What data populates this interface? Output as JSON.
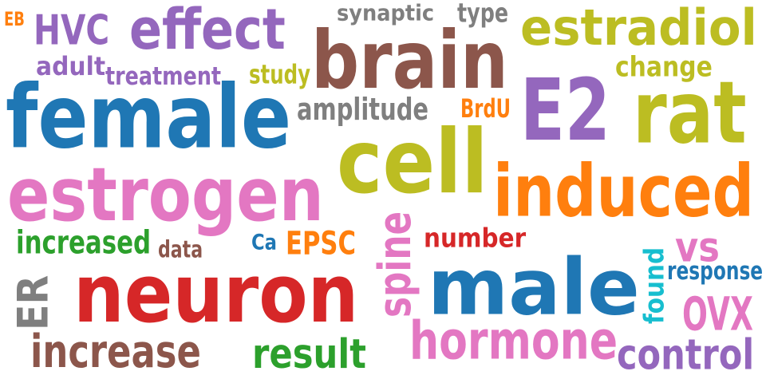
{
  "palette": {
    "blue": "#1f77b4",
    "orange": "#ff7f0e",
    "green": "#2ca02c",
    "red": "#d62728",
    "purple": "#9467bd",
    "brown": "#8c564b",
    "pink": "#e377c2",
    "gray": "#7f7f7f",
    "olive": "#bcbd22",
    "cyan": "#17becf"
  },
  "words": [
    {
      "text": "EB",
      "color": "orange",
      "vertical": false
    },
    {
      "text": "HVC",
      "color": "purple",
      "vertical": false
    },
    {
      "text": "effect",
      "color": "purple",
      "vertical": false
    },
    {
      "text": "synaptic",
      "color": "gray",
      "vertical": false
    },
    {
      "text": "type",
      "color": "gray",
      "vertical": false
    },
    {
      "text": "estradiol",
      "color": "olive",
      "vertical": false
    },
    {
      "text": "brain",
      "color": "brown",
      "vertical": false
    },
    {
      "text": "adult",
      "color": "purple",
      "vertical": false
    },
    {
      "text": "treatment",
      "color": "purple",
      "vertical": false
    },
    {
      "text": "study",
      "color": "olive",
      "vertical": false
    },
    {
      "text": "change",
      "color": "olive",
      "vertical": false
    },
    {
      "text": "E2",
      "color": "purple",
      "vertical": false
    },
    {
      "text": "rat",
      "color": "olive",
      "vertical": false
    },
    {
      "text": "female",
      "color": "blue",
      "vertical": false
    },
    {
      "text": "amplitude",
      "color": "gray",
      "vertical": false
    },
    {
      "text": "BrdU",
      "color": "orange",
      "vertical": false
    },
    {
      "text": "cell",
      "color": "olive",
      "vertical": false
    },
    {
      "text": "induced",
      "color": "orange",
      "vertical": false
    },
    {
      "text": "estrogen",
      "color": "pink",
      "vertical": false
    },
    {
      "text": "increased",
      "color": "green",
      "vertical": false
    },
    {
      "text": "data",
      "color": "brown",
      "vertical": false
    },
    {
      "text": "Ca",
      "color": "blue",
      "vertical": false
    },
    {
      "text": "EPSC",
      "color": "orange",
      "vertical": false
    },
    {
      "text": "spine",
      "color": "pink",
      "vertical": true
    },
    {
      "text": "number",
      "color": "red",
      "vertical": false
    },
    {
      "text": "vs",
      "color": "pink",
      "vertical": false
    },
    {
      "text": "male",
      "color": "blue",
      "vertical": false
    },
    {
      "text": "found",
      "color": "cyan",
      "vertical": true
    },
    {
      "text": "response",
      "color": "blue",
      "vertical": false
    },
    {
      "text": "ER",
      "color": "gray",
      "vertical": true
    },
    {
      "text": "neuron",
      "color": "red",
      "vertical": false
    },
    {
      "text": "OVX",
      "color": "pink",
      "vertical": false
    },
    {
      "text": "increase",
      "color": "brown",
      "vertical": false
    },
    {
      "text": "result",
      "color": "green",
      "vertical": false
    },
    {
      "text": "hormone",
      "color": "pink",
      "vertical": false
    },
    {
      "text": "control",
      "color": "purple",
      "vertical": false
    }
  ]
}
